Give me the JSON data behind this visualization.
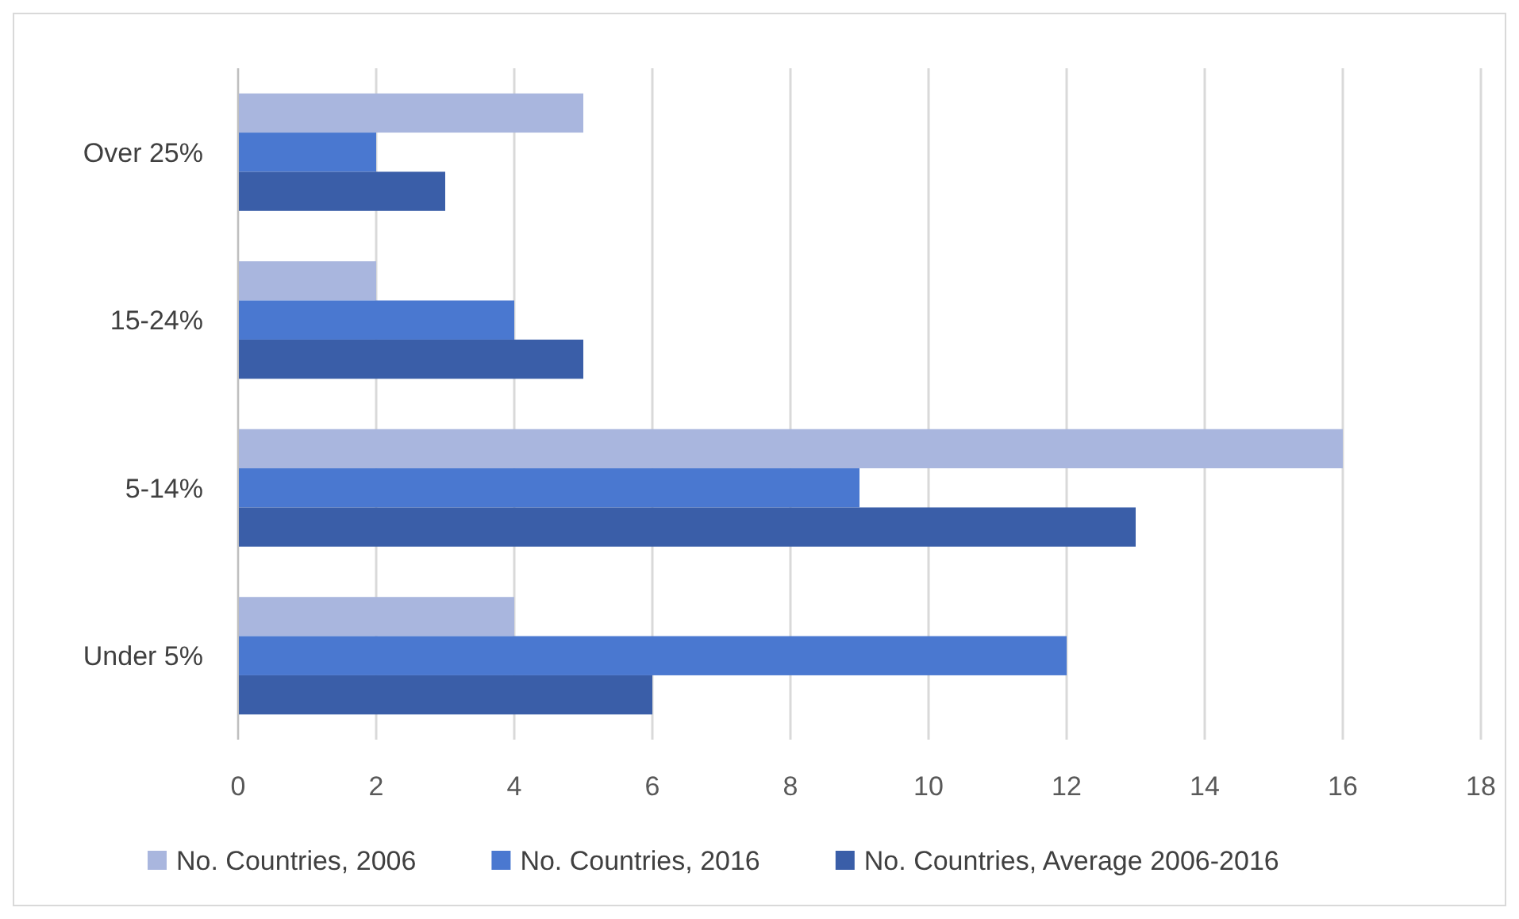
{
  "chart_data": {
    "type": "bar",
    "orientation": "horizontal",
    "categories": [
      "Over 25%",
      "15-24%",
      "5-14%",
      "Under 5%"
    ],
    "series": [
      {
        "name": "No. Countries, 2006",
        "color": "#a9b6de",
        "values": [
          5,
          2,
          16,
          4
        ]
      },
      {
        "name": "No. Countries, 2016",
        "color": "#4a78d0",
        "values": [
          2,
          4,
          9,
          12
        ]
      },
      {
        "name": "No. Countries, Average 2006-2016",
        "color": "#3a5ea8",
        "values": [
          3,
          5,
          13,
          6
        ]
      }
    ],
    "xlim": [
      0,
      18
    ],
    "xticks": [
      0,
      2,
      4,
      6,
      8,
      10,
      12,
      14,
      16,
      18
    ],
    "grid": "x",
    "legend": "bottom"
  }
}
